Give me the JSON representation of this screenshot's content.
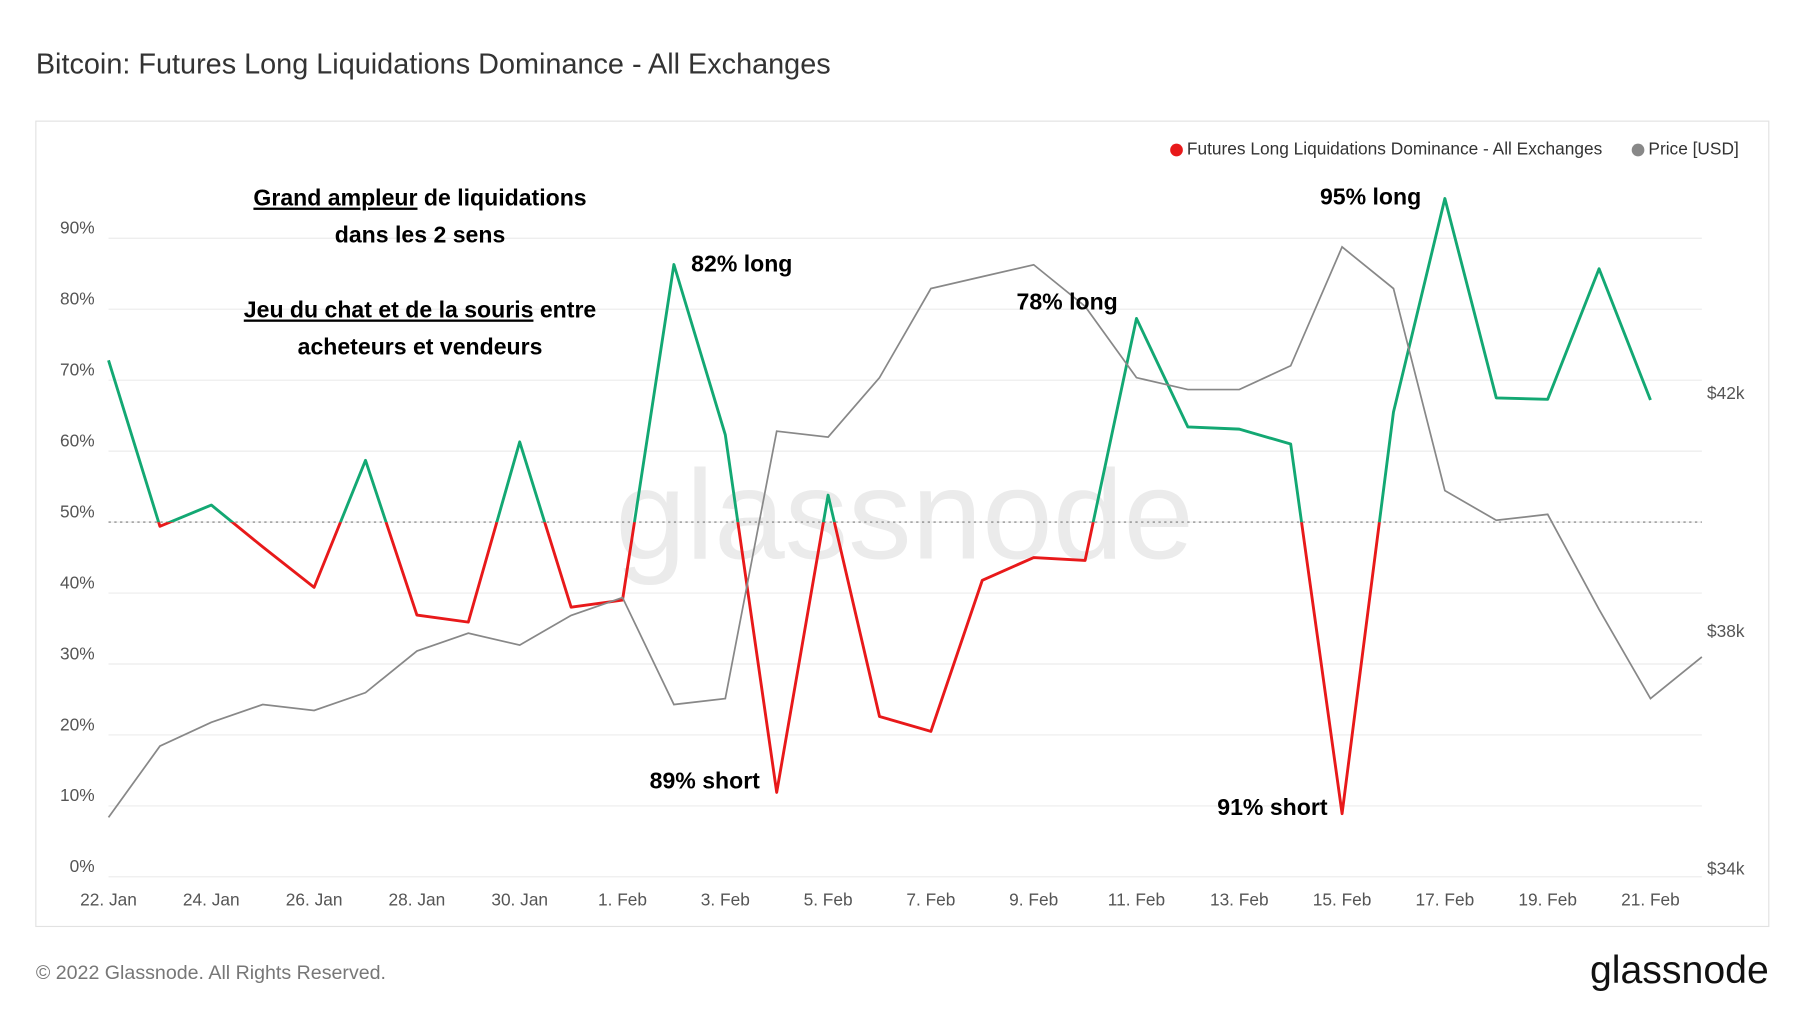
{
  "chart_data": {
    "type": "line",
    "title": "Bitcoin: Futures Long Liquidations Dominance - All Exchanges",
    "categories": [
      "22. Jan",
      null,
      "24. Jan",
      null,
      "26. Jan",
      null,
      "28. Jan",
      null,
      "30. Jan",
      null,
      "1. Feb",
      null,
      "3. Feb",
      null,
      "5. Feb",
      null,
      "7. Feb",
      null,
      "9. Feb",
      null,
      "11. Feb",
      null,
      "13. Feb",
      null,
      "15. Feb",
      null,
      "17. Feb",
      null,
      "19. Feb",
      null,
      "21. Feb",
      null
    ],
    "series": [
      {
        "name": "Futures Long Liquidations Dominance - All Exchanges",
        "color": "#e8191a",
        "color_above": "#13a873",
        "values": [
          72.8,
          49.4,
          52.4,
          46.5,
          40.8,
          58.7,
          36.9,
          35.9,
          61.3,
          38.0,
          39.0,
          86.3,
          62.3,
          11.9,
          53.8,
          22.6,
          20.5,
          41.8,
          45.0,
          44.6,
          78.7,
          63.4,
          63.1,
          61.0,
          8.9,
          65.5,
          95.6,
          67.5,
          67.3,
          85.7,
          67.2,
          null
        ]
      },
      {
        "name": "Price [USD]",
        "color": "#888888",
        "axis": "y2",
        "values": [
          35000,
          36200,
          36600,
          36900,
          36800,
          37100,
          37800,
          38100,
          37900,
          38400,
          38700,
          36900,
          37000,
          41500,
          41400,
          42400,
          43900,
          44100,
          44300,
          43600,
          42400,
          42200,
          42200,
          42600,
          44600,
          43900,
          40500,
          40000,
          40100,
          38500,
          37000,
          37700
        ]
      }
    ],
    "ylim": [
      0,
      100
    ],
    "yticks": [
      {
        "value": 0,
        "label": "0%"
      },
      {
        "value": 10,
        "label": "10%"
      },
      {
        "value": 20,
        "label": "20%"
      },
      {
        "value": 30,
        "label": "30%"
      },
      {
        "value": 40,
        "label": "40%"
      },
      {
        "value": 50,
        "label": "50%"
      },
      {
        "value": 60,
        "label": "60%"
      },
      {
        "value": 70,
        "label": "70%"
      },
      {
        "value": 80,
        "label": "80%"
      },
      {
        "value": 90,
        "label": "90%"
      }
    ],
    "y2lim": [
      34000,
      45940
    ],
    "y2ticks": [
      {
        "value": 34000,
        "label": "$34k"
      },
      {
        "value": 38000,
        "label": "$38k"
      },
      {
        "value": 42000,
        "label": "$42k"
      }
    ],
    "threshold": 50,
    "grid": true,
    "legend": "top-right",
    "annotations": [
      "82% long",
      "78% long",
      "95% long",
      "89% short",
      "91% short"
    ],
    "note": {
      "l1u": "Grand ampleur",
      "l1": " de liquidations",
      "l2": "dans les 2 sens",
      "l3u": "Jeu du chat et de la souris",
      "l3": " entre",
      "l4": "acheteurs et vendeurs"
    }
  },
  "footer": {
    "copyright": "© 2022 Glassnode. All Rights Reserved.",
    "logo": "glassnode",
    "watermark": "glassnode"
  }
}
